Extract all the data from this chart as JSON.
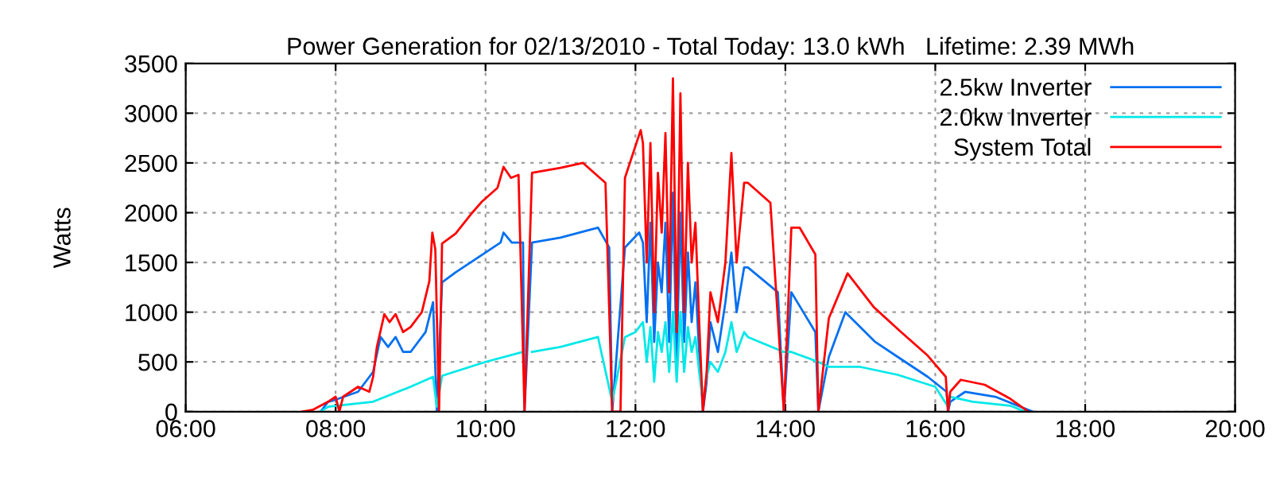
{
  "chart_data": {
    "type": "line",
    "title": "Power Generation for 02/13/2010 - Total Today: 13.0 kWh   Lifetime: 2.39 MWh",
    "ylabel": "Watts",
    "xlim": [
      6,
      20
    ],
    "xticks": [
      {
        "value": 6,
        "label": "06:00"
      },
      {
        "value": 8,
        "label": "08:00"
      },
      {
        "value": 10,
        "label": "10:00"
      },
      {
        "value": 12,
        "label": "12:00"
      },
      {
        "value": 14,
        "label": "14:00"
      },
      {
        "value": 16,
        "label": "16:00"
      },
      {
        "value": 18,
        "label": "18:00"
      },
      {
        "value": 20,
        "label": "20:00"
      }
    ],
    "ylim": [
      0,
      3500
    ],
    "yticks": [
      0,
      500,
      1000,
      1500,
      2000,
      2500,
      3000,
      3500
    ],
    "grid": true,
    "legend": "top right",
    "line_style": "solid",
    "series": [
      {
        "name": "2.5kw Inverter",
        "color": "#0070f0",
        "x": [
          7.8,
          7.9,
          8.0,
          8.3,
          8.5,
          8.6,
          8.7,
          8.8,
          8.9,
          9.0,
          9.2,
          9.3,
          9.35,
          9.42,
          9.6,
          9.9,
          10.2,
          10.24,
          10.35,
          10.5,
          10.52,
          10.62,
          11.0,
          11.5,
          11.65,
          11.69,
          11.86,
          12.05,
          12.1,
          12.15,
          12.2,
          12.25,
          12.3,
          12.35,
          12.4,
          12.45,
          12.5,
          12.55,
          12.6,
          12.65,
          12.7,
          12.75,
          12.8,
          12.85,
          12.9,
          12.95,
          13.0,
          13.1,
          13.2,
          13.28,
          13.35,
          13.45,
          13.5,
          13.9,
          13.98,
          14.08,
          14.4,
          14.44,
          14.58,
          14.8,
          15.2,
          15.5,
          15.9,
          16.15,
          16.17,
          16.2,
          16.4,
          16.8,
          17.2,
          17.3
        ],
        "values": [
          0,
          100,
          120,
          200,
          400,
          750,
          650,
          750,
          600,
          600,
          800,
          1100,
          0,
          1300,
          1400,
          1550,
          1700,
          1800,
          1700,
          1700,
          0,
          1700,
          1750,
          1850,
          1650,
          0,
          1650,
          1800,
          1700,
          900,
          1900,
          700,
          1500,
          1200,
          1900,
          700,
          2200,
          500,
          2000,
          700,
          1600,
          900,
          1300,
          600,
          0,
          300,
          900,
          600,
          1100,
          1600,
          1000,
          1450,
          1450,
          1200,
          0,
          1200,
          800,
          0,
          550,
          1000,
          700,
          550,
          350,
          200,
          0,
          100,
          200,
          150,
          30,
          0
        ]
      },
      {
        "name": "2.0kw Inverter",
        "color": "#00e8e8",
        "x": [
          7.8,
          7.9,
          8.5,
          9.0,
          9.3,
          9.35,
          9.42,
          9.5,
          10.0,
          10.5,
          10.52,
          10.62,
          11.0,
          11.5,
          11.69,
          11.86,
          12.0,
          12.1,
          12.15,
          12.2,
          12.25,
          12.3,
          12.35,
          12.4,
          12.45,
          12.5,
          12.55,
          12.6,
          12.65,
          12.7,
          12.75,
          12.8,
          12.85,
          12.9,
          12.95,
          13.0,
          13.1,
          13.2,
          13.28,
          13.35,
          13.45,
          13.5,
          13.98,
          14.08,
          14.44,
          14.58,
          15.0,
          15.5,
          16.0,
          16.17,
          16.2,
          16.5,
          17.0,
          17.2
        ],
        "values": [
          0,
          50,
          100,
          250,
          350,
          50,
          360,
          380,
          500,
          600,
          null,
          600,
          650,
          750,
          100,
          750,
          800,
          900,
          500,
          850,
          300,
          800,
          600,
          900,
          400,
          1000,
          300,
          1000,
          400,
          850,
          600,
          750,
          400,
          100,
          350,
          500,
          400,
          600,
          900,
          600,
          800,
          750,
          600,
          600,
          500,
          450,
          450,
          370,
          250,
          50,
          150,
          100,
          60,
          0
        ]
      },
      {
        "name": "System Total",
        "color": "#ff0000",
        "x": [
          7.55,
          7.7,
          7.9,
          8.0,
          8.05,
          8.1,
          8.3,
          8.45,
          8.5,
          8.55,
          8.65,
          8.72,
          8.8,
          8.9,
          9.0,
          9.15,
          9.25,
          9.29,
          9.33,
          9.38,
          9.42,
          9.6,
          9.8,
          9.95,
          10.16,
          10.24,
          10.34,
          10.44,
          10.52,
          10.62,
          11.0,
          11.3,
          11.6,
          11.69,
          11.8,
          11.86,
          12.07,
          12.1,
          12.15,
          12.2,
          12.25,
          12.3,
          12.35,
          12.4,
          12.45,
          12.5,
          12.55,
          12.6,
          12.65,
          12.7,
          12.75,
          12.8,
          12.85,
          12.9,
          12.95,
          13.0,
          13.1,
          13.2,
          13.28,
          13.35,
          13.45,
          13.5,
          13.8,
          13.98,
          14.08,
          14.19,
          14.4,
          14.44,
          14.58,
          14.83,
          15.18,
          15.53,
          15.89,
          16.14,
          16.17,
          16.2,
          16.34,
          16.66,
          17.0,
          17.24
        ],
        "values": [
          0,
          20,
          100,
          150,
          0,
          150,
          250,
          200,
          350,
          650,
          980,
          900,
          980,
          800,
          850,
          1000,
          1310,
          1800,
          1630,
          0,
          1690,
          1790,
          1980,
          2110,
          2250,
          2460,
          2350,
          2380,
          0,
          2400,
          2450,
          2500,
          2300,
          0,
          0,
          2350,
          2830,
          2700,
          1500,
          2700,
          1000,
          2400,
          1800,
          2800,
          1200,
          3350,
          800,
          3200,
          1000,
          2500,
          1500,
          1900,
          900,
          0,
          400,
          1200,
          900,
          1500,
          2600,
          1500,
          2300,
          2300,
          2100,
          0,
          1850,
          1850,
          1580,
          0,
          940,
          1390,
          1050,
          810,
          570,
          350,
          0,
          200,
          320,
          270,
          130,
          0
        ]
      }
    ]
  }
}
